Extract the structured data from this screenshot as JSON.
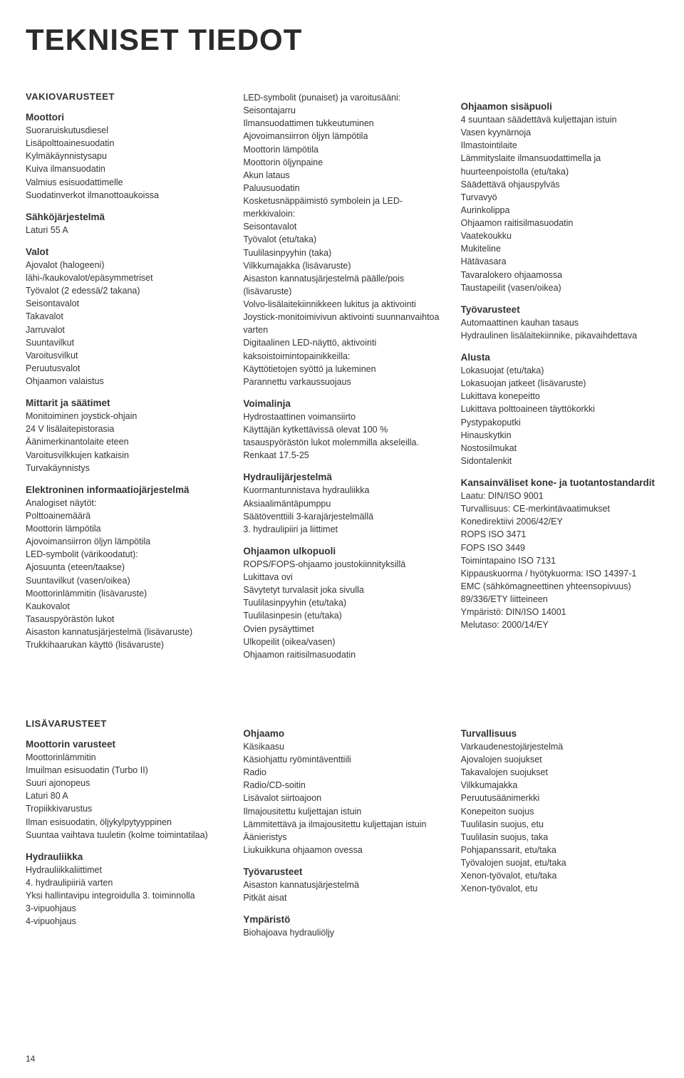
{
  "page_title": "TEKNISET TIEDOT",
  "page_number": "14",
  "upper": {
    "col1": {
      "section": "VAKIOVARUSTEET",
      "groups": [
        {
          "title": "Moottori",
          "items": [
            "Suoraruiskutusdiesel",
            "Lisäpolttoainesuodatin",
            "Kylmäkäynnistysapu",
            "Kuiva ilmansuodatin",
            "Valmius esisuodattimelle",
            "Suodatinverkot ilmanottoaukoissa"
          ]
        },
        {
          "title": "Sähköjärjestelmä",
          "items": [
            "Laturi 55 A"
          ]
        },
        {
          "title": "Valot",
          "items": [
            "Ajovalot (halogeeni) lähi-/kaukovalot/epäsymmetriset",
            "Työvalot (2 edessä/2 takana)",
            "Seisontavalot",
            "Takavalot",
            "Jarruvalot",
            "Suuntavilkut",
            "Varoitusvilkut",
            "Peruutusvalot",
            "Ohjaamon valaistus"
          ]
        },
        {
          "title": "Mittarit ja säätimet",
          "items": [
            "Monitoiminen joystick-ohjain",
            "24 V lisälaitepistorasia",
            "Äänimerkinantolaite eteen",
            "Varoitusvilkkujen katkaisin",
            "Turvakäynnistys"
          ]
        },
        {
          "title": "Elektroninen informaatiojärjestelmä",
          "items": [
            "Analogiset näytöt:",
            "Polttoainemäärä",
            "Moottorin lämpötila",
            "Ajovoimansiirron öljyn lämpötila",
            "LED-symbolit (värikoodatut):",
            "Ajosuunta (eteen/taakse)",
            "Suuntavilkut (vasen/oikea)",
            "Moottorinlämmitin (lisävaruste)",
            "Kaukovalot",
            "Tasauspyörästön lukot",
            "Aisaston kannatusjärjestelmä (lisävaruste)",
            "Trukkihaarukan käyttö (lisävaruste)"
          ]
        }
      ]
    },
    "col2": {
      "groups": [
        {
          "title": "",
          "items": [
            "LED-symbolit (punaiset) ja varoitusääni:",
            "Seisontajarru",
            "Ilmansuodattimen tukkeutuminen",
            "Ajovoimansiirron öljyn lämpötila",
            "Moottorin lämpötila",
            "Moottorin öljynpaine",
            "Akun lataus",
            "Paluusuodatin",
            "Kosketusnäppäimistö symbolein ja LED-merkkivaloin:",
            "Seisontavalot",
            "Työvalot (etu/taka)",
            "Tuulilasinpyyhin (taka)",
            "Vilkkumajakka (lisävaruste)",
            "Aisaston kannatusjärjestelmä päälle/pois (lisävaruste)",
            "Volvo-lisälaitekiinnikkeen lukitus ja aktivointi",
            "Joystick-monitoimivivun aktivointi suunnanvaihtoa varten",
            "Digitaalinen LED-näyttö, aktivointi kaksoistoimintopainikkeilla:",
            "Käyttötietojen syöttö ja lukeminen",
            "Parannettu varkaussuojaus"
          ]
        },
        {
          "title": "Voimalinja",
          "items": [
            "Hydrostaattinen voimansiirto",
            "Käyttäjän kytkettävissä olevat 100 % tasauspyörästön lukot molemmilla akseleilla.",
            "Renkaat 17.5-25"
          ]
        },
        {
          "title": "Hydraulijärjestelmä",
          "items": [
            "Kuormantunnistava hydrauliikka",
            "Aksiaalimäntäpumppu",
            "Säätöventtiili 3-karajärjestelmällä",
            "3. hydraulipiiri ja liittimet"
          ]
        },
        {
          "title": "Ohjaamon ulkopuoli",
          "items": [
            "ROPS/FOPS-ohjaamo joustokiinnityksillä",
            "Lukittava ovi",
            "Sävytetyt turvalasit joka sivulla",
            "Tuulilasinpyyhin (etu/taka)",
            "Tuulilasinpesin (etu/taka)",
            "Ovien pysäyttimet",
            "Ulkopeilit (oikea/vasen)",
            "Ohjaamon raitisilmasuodatin"
          ]
        }
      ]
    },
    "col3": {
      "groups": [
        {
          "title": "Ohjaamon sisäpuoli",
          "items": [
            "4 suuntaan säädettävä kuljettajan istuin",
            "Vasen kyynärnoja",
            "Ilmastointilaite",
            "Lämmityslaite ilmansuodattimella ja huurteenpoistolla (etu/taka)",
            "Säädettävä ohjauspylväs",
            "Turvavyö",
            "Aurinkolippa",
            "Ohjaamon raitisilmasuodatin",
            "Vaatekoukku",
            "Mukiteline",
            "Hätävasara",
            "Tavaralokero ohjaamossa",
            "Taustapeilit (vasen/oikea)"
          ]
        },
        {
          "title": "Työvarusteet",
          "items": [
            "Automaattinen kauhan tasaus",
            "Hydraulinen lisälaitekiinnike, pikavaihdettava"
          ]
        },
        {
          "title": "Alusta",
          "items": [
            "Lokasuojat (etu/taka)",
            "Lokasuojan jatkeet (lisävaruste)",
            "Lukittava konepeitto",
            "Lukittava polttoaineen täyttökorkki",
            "Pystypakoputki",
            "Hinauskytkin",
            "Nostosilmukat",
            "Sidontalenkit"
          ]
        },
        {
          "title": "Kansainväliset kone- ja tuotantostandardit",
          "items": [
            "Laatu: DIN/ISO 9001",
            "Turvallisuus: CE-merkintävaatimukset",
            "Konedirektiivi 2006/42/EY",
            "ROPS ISO 3471",
            "FOPS ISO 3449",
            "Toimintapaino ISO 7131",
            "Kippauskuorma / hyötykuorma: ISO 14397-1",
            "EMC (sähkömagneettinen yhteensopivuus) 89/336/ETY liitteineen",
            "Ympäristö: DIN/ISO 14001",
            "Melutaso: 2000/14/EY"
          ]
        }
      ]
    }
  },
  "lower": {
    "col1": {
      "section": "LISÄVARUSTEET",
      "groups": [
        {
          "title": "Moottorin varusteet",
          "items": [
            "Moottorinlämmitin",
            "Imuilman esisuodatin (Turbo II)",
            "Suuri ajonopeus",
            "Laturi 80 A",
            "Tropiikkivarustus",
            "Ilman esisuodatin, öljykylpytyyppinen",
            "Suuntaa vaihtava tuuletin (kolme toimintatilaa)"
          ]
        },
        {
          "title": "Hydrauliikka",
          "items": [
            "Hydrauliikkaliittimet",
            "4. hydraulipiiriä varten",
            "Yksi hallintavipu integroidulla 3. toiminnolla",
            "3-vipuohjaus",
            "4-vipuohjaus"
          ]
        }
      ]
    },
    "col2": {
      "groups": [
        {
          "title": "Ohjaamo",
          "items": [
            "Käsikaasu",
            "Käsiohjattu ryömintäventtiili",
            "Radio",
            "Radio/CD-soitin",
            "Lisävalot siirtoajoon",
            "Ilmajousitettu kuljettajan istuin",
            "Lämmitettävä ja ilmajousitettu kuljettajan istuin",
            "Äänieristys",
            "Liukuikkuna ohjaamon ovessa"
          ]
        },
        {
          "title": "Työvarusteet",
          "items": [
            "Aisaston kannatusjärjestelmä",
            "Pitkät aisat"
          ]
        },
        {
          "title": "Ympäristö",
          "items": [
            "Biohajoava hydrauliöljy"
          ]
        }
      ]
    },
    "col3": {
      "groups": [
        {
          "title": "Turvallisuus",
          "items": [
            "Varkaudenestojärjestelmä",
            "Ajovalojen suojukset",
            "Takavalojen suojukset",
            "Vilkkumajakka",
            "Peruutusäänimerkki",
            "Konepeiton suojus",
            "Tuulilasin suojus, etu",
            "Tuulilasin suojus, taka",
            "Pohjapanssarit, etu/taka",
            "Työvalojen suojat, etu/taka",
            "Xenon-työvalot, etu/taka",
            "Xenon-työvalot, etu"
          ]
        }
      ]
    }
  }
}
